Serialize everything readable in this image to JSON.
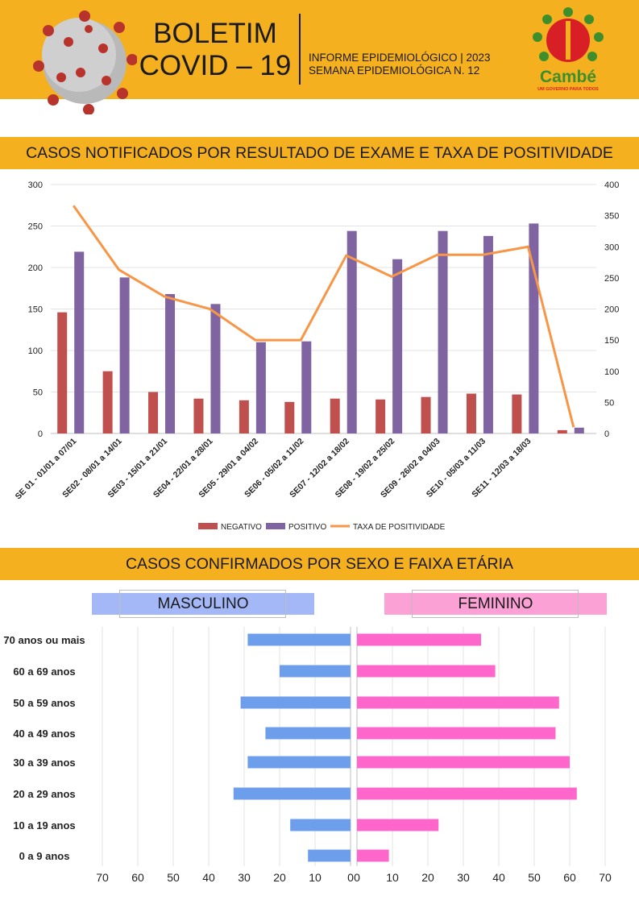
{
  "header": {
    "title_line1": "BOLETIM",
    "title_line2": "COVID – 19",
    "info_line1": "INFORME EPIDEMIOLÓGICO | 2023",
    "info_line2": "SEMANA EPIDEMIOLÓGICA  N. 12",
    "logo_text": "Cambé",
    "logo_slogan": "UM GOVERNO PARA TODOS",
    "colors": {
      "band": "#f5b01f",
      "logo_green": "#3e8f2c",
      "logo_red": "#d81f26"
    }
  },
  "section1": {
    "title": "CASOS NOTIFICADOS POR RESULTADO DE EXAME E TAXA DE POSITIVIDADE"
  },
  "section2": {
    "title": "CASOS CONFIRMADOS POR SEXO E FAIXA ETÁRIA"
  },
  "chart_data": [
    {
      "type": "bar",
      "title": "CASOS NOTIFICADOS POR RESULTADO DE EXAME E TAXA DE POSITIVIDADE",
      "categories": [
        "SE 01 - 01/01 a 07/01",
        "SE02 - 08/01 a 14/01",
        "SE03 - 15/01 a 21/01",
        "SE04 - 22/01 a 28/01",
        "SE05 - 29/01 a 04/02",
        "SE06 - 05/02 a 11/02",
        "SE07 - 12/02 a 18/02",
        "SE08 - 19/02 a 25/02",
        "SE09 - 26/02 a 04/03",
        "SE10 - 05/03 a 11/03",
        "SE11 - 12/03 a 18/03",
        ""
      ],
      "series": [
        {
          "name": "NEGATIVO",
          "type": "bar",
          "axis": "left",
          "color": "#c0504d",
          "values": [
            146,
            75,
            50,
            42,
            40,
            38,
            42,
            41,
            44,
            48,
            47,
            4
          ]
        },
        {
          "name": "POSITIVO",
          "type": "bar",
          "axis": "left",
          "color": "#8064a2",
          "values": [
            219,
            188,
            168,
            156,
            110,
            111,
            244,
            210,
            244,
            238,
            253,
            7
          ]
        },
        {
          "name": "TAXA DE POSITIVIDADE",
          "type": "line",
          "axis": "right",
          "color": "#f79646",
          "values": [
            366,
            263,
            220,
            200,
            150,
            150,
            286,
            252,
            287,
            287,
            300,
            10
          ]
        }
      ],
      "ylim": [
        0,
        300
      ],
      "yticks": [
        0,
        50,
        100,
        150,
        200,
        250,
        300
      ],
      "y2lim": [
        0,
        400
      ],
      "y2ticks": [
        0,
        50,
        100,
        150,
        200,
        250,
        300,
        350,
        400
      ],
      "legend": "bottom",
      "grid": true
    },
    {
      "type": "bar",
      "orientation": "horizontal",
      "title": "CASOS CONFIRMADOS POR SEXO E FAIXA ETÁRIA",
      "categories": [
        "70 anos ou mais",
        "60 a 69 anos",
        "50 a 59 anos",
        "40 a 49 anos",
        "30 a 39 anos",
        "20 a 29 anos",
        "10 a 19 anos",
        "0 a 9 anos"
      ],
      "series": [
        {
          "name": "MASCULINO",
          "color": "#6d9eeb",
          "values": [
            29,
            20,
            31,
            24,
            29,
            33,
            17,
            12
          ]
        },
        {
          "name": "FEMININO",
          "color": "#ff66cc",
          "values": [
            35,
            39,
            57,
            56,
            60,
            62,
            23,
            9
          ]
        }
      ],
      "xlim": [
        0,
        70
      ],
      "xticks": [
        0,
        10,
        20,
        30,
        40,
        50,
        60,
        70
      ],
      "grid": true
    }
  ]
}
